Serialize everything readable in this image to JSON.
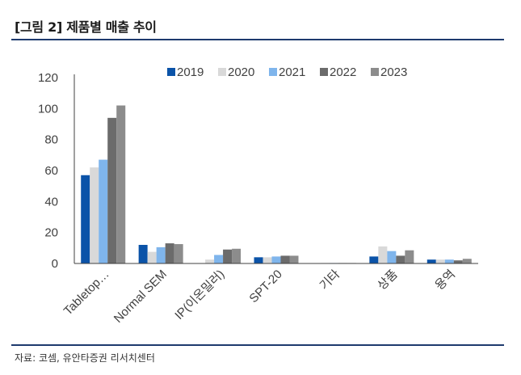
{
  "header": {
    "title": "[그림 2] 제품별 매출 추이"
  },
  "footer": {
    "source": "자료: 코셈, 유안타증권 리서치센터"
  },
  "chart_data": {
    "type": "bar",
    "title": "",
    "xlabel": "",
    "ylabel": "",
    "ylim": [
      0,
      120
    ],
    "yticks": [
      0,
      20,
      40,
      60,
      80,
      100,
      120
    ],
    "grid": false,
    "legend_position": "top-right",
    "categories": [
      "Tabletop…",
      "Normal SEM",
      "IP(이온밀러)",
      "SPT-20",
      "기타",
      "상품",
      "용역"
    ],
    "series": [
      {
        "name": "2019",
        "color": "#0b53a8",
        "values": [
          57,
          12,
          0,
          4,
          0,
          4.5,
          2.5
        ]
      },
      {
        "name": "2020",
        "color": "#d9d9d9",
        "values": [
          62,
          7.5,
          2.5,
          4,
          0.3,
          11,
          2.5
        ]
      },
      {
        "name": "2021",
        "color": "#7fb5ec",
        "values": [
          67,
          10.5,
          5.5,
          4.5,
          0.3,
          8,
          2.5
        ]
      },
      {
        "name": "2022",
        "color": "#6b6b6b",
        "values": [
          94,
          13,
          9,
          5,
          0.3,
          5,
          2
        ]
      },
      {
        "name": "2023",
        "color": "#8c8c8c",
        "values": [
          102,
          12.5,
          9.5,
          5,
          0.3,
          8.5,
          3
        ]
      }
    ]
  }
}
